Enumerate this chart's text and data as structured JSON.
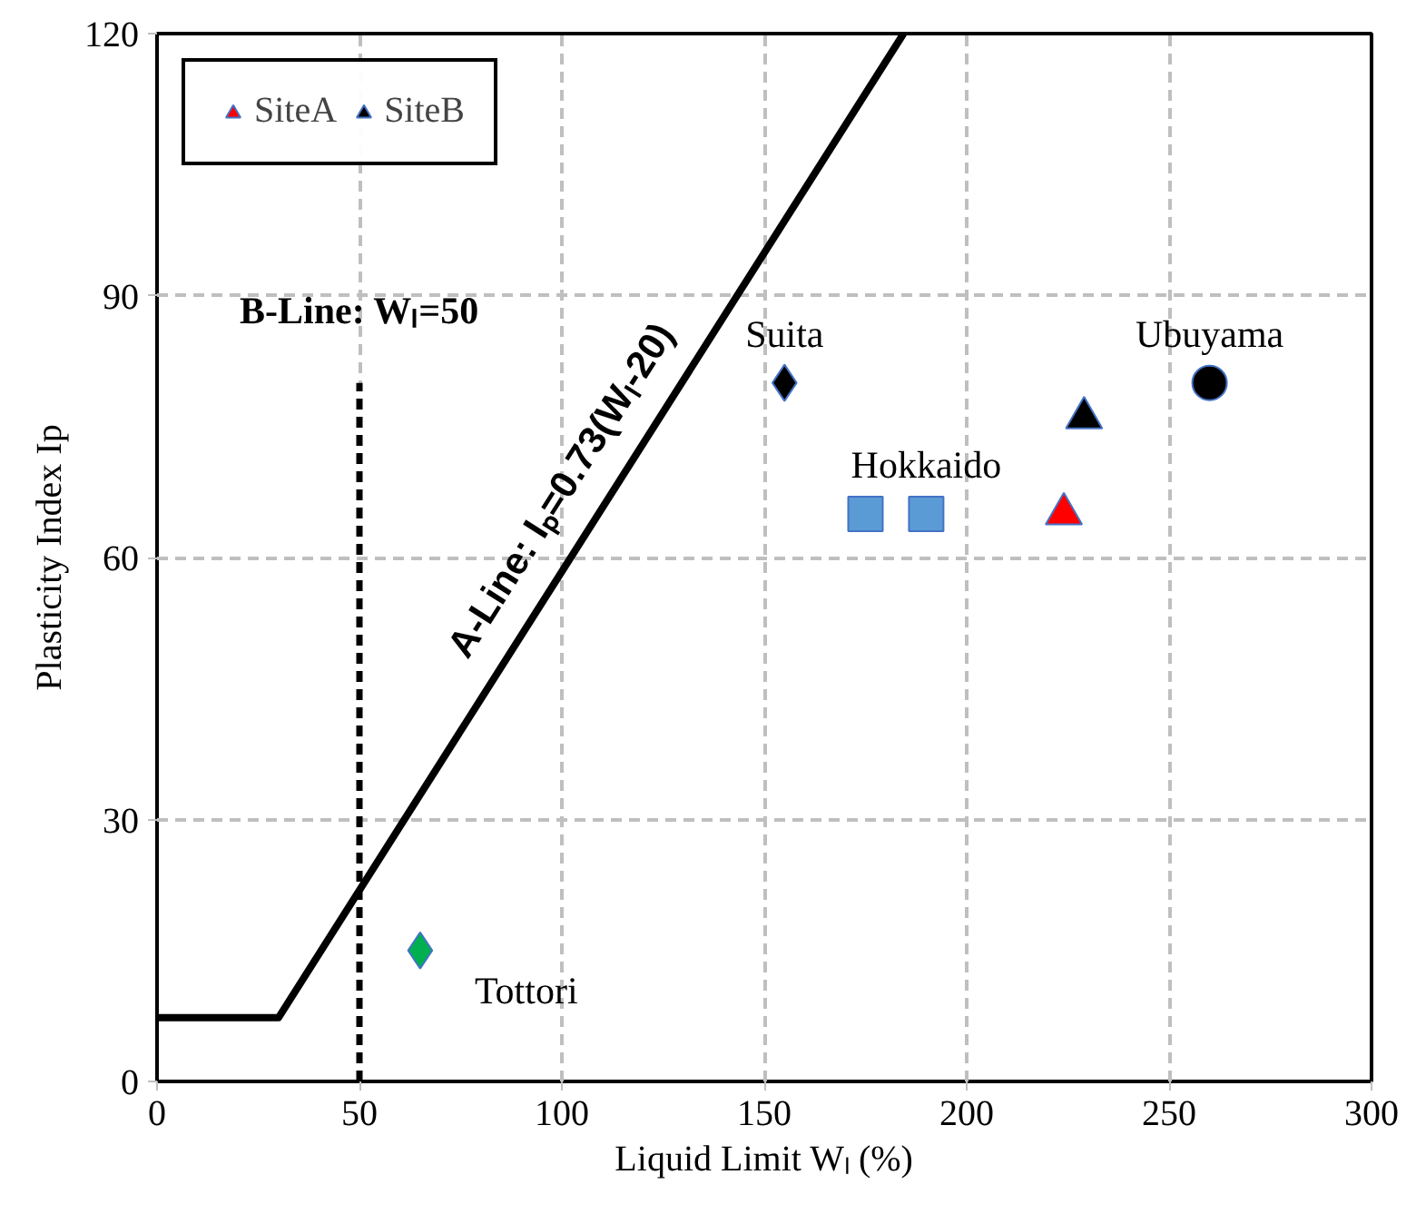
{
  "chart_data": {
    "type": "scatter",
    "xlabel": "Liquid Limit Wₗ (%)",
    "ylabel": "Plasticity Index Ip",
    "xlim": [
      0,
      300
    ],
    "ylim": [
      0,
      120
    ],
    "xticks": [
      0,
      50,
      100,
      150,
      200,
      250,
      300
    ],
    "yticks": [
      0,
      30,
      60,
      90,
      120
    ],
    "grid": true,
    "legend": "top left",
    "series": [
      {
        "type": "line",
        "color": "#000000",
        "line_style": "solid",
        "x": [
          0,
          30,
          184.4
        ],
        "values": [
          7.3,
          7.3,
          120
        ]
      },
      {
        "type": "line",
        "color": "#000000",
        "line_style": "dashed",
        "x": [
          50,
          50
        ],
        "values": [
          0,
          80
        ]
      },
      {
        "color": "#000000",
        "marker": "diamond",
        "x": [
          155
        ],
        "values": [
          80
        ]
      },
      {
        "color": "#5b9bd5",
        "marker": "square",
        "x": [
          175,
          190
        ],
        "values": [
          65,
          65
        ]
      },
      {
        "color": "#000000",
        "marker": "circle",
        "x": [
          260
        ],
        "values": [
          80
        ]
      },
      {
        "color": "#00b050",
        "marker": "diamond",
        "x": [
          65
        ],
        "values": [
          15
        ]
      },
      {
        "name": "SiteA",
        "color": "#ff0000",
        "marker": "triangle",
        "x": [
          224
        ],
        "values": [
          65
        ]
      },
      {
        "name": "SiteB",
        "color": "#000000",
        "marker": "triangle",
        "x": [
          229
        ],
        "values": [
          76
        ]
      }
    ],
    "annotations": [
      {
        "text": "A-Line: Iₚ=0.73(Wₗ-20)",
        "x": 109,
        "y": 65
      },
      {
        "text": "B-Line: Wₗ=50",
        "x": 50,
        "y": 80
      },
      {
        "text": "Suita",
        "x": 155,
        "y": 80
      },
      {
        "text": "Ubuyama",
        "x": 260,
        "y": 80
      },
      {
        "text": "Hokkaido",
        "x": 190,
        "y": 65
      },
      {
        "text": "Tottori",
        "x": 65,
        "y": 15
      }
    ]
  }
}
